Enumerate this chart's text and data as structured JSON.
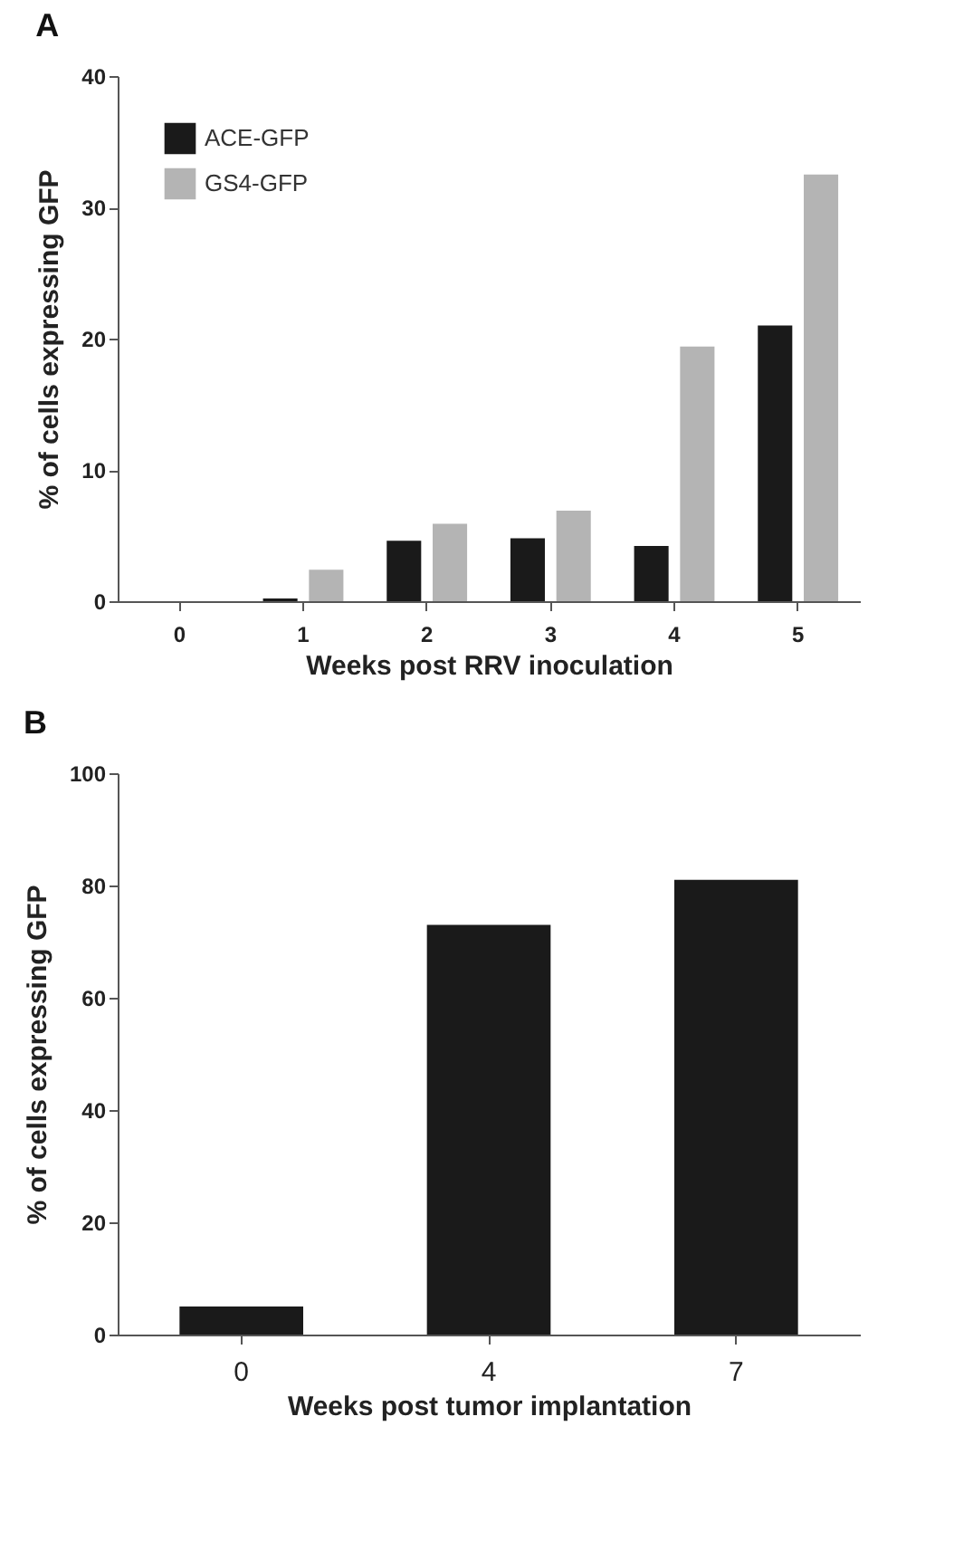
{
  "chart_data": [
    {
      "type": "bar",
      "title": "A",
      "xlabel": "Weeks post RRV inoculation",
      "ylabel": "% of cells expressing GFP",
      "categories": [
        "0",
        "1",
        "2",
        "3",
        "4",
        "5"
      ],
      "ylim": [
        0,
        40
      ],
      "yticks": [
        0,
        10,
        20,
        30,
        40
      ],
      "grid": false,
      "legend": "top left",
      "series": [
        {
          "name": "ACE-GFP",
          "color": "#1a1a1a",
          "values": [
            null,
            0.2,
            4.6,
            4.8,
            4.2,
            21
          ]
        },
        {
          "name": "GS4-GFP",
          "color": "#b4b4b4",
          "values": [
            null,
            2.4,
            5.9,
            6.9,
            19.4,
            32.5
          ]
        }
      ]
    },
    {
      "type": "bar",
      "title": "B",
      "xlabel": "Weeks post tumor implantation",
      "ylabel": "% of cells expressing GFP",
      "categories": [
        "0",
        "4",
        "7"
      ],
      "ylim": [
        0,
        100
      ],
      "yticks": [
        0,
        20,
        40,
        60,
        80,
        100
      ],
      "grid": false,
      "color": "#1a1a1a",
      "values": [
        5,
        73,
        81
      ]
    }
  ]
}
